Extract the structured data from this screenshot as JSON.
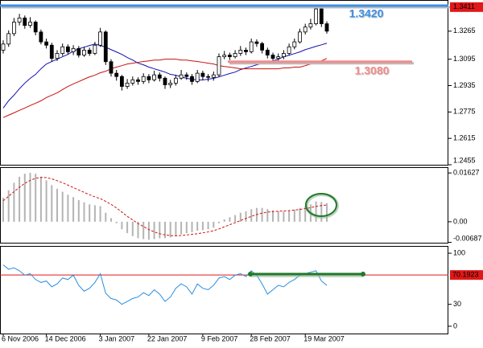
{
  "chart_data": [
    {
      "type": "candlestick",
      "open": [
        1.315,
        1.3187,
        1.325,
        1.332,
        1.3345,
        1.33,
        1.332,
        1.326,
        1.32,
        1.318,
        1.31,
        1.313,
        1.317,
        1.314,
        1.316,
        1.312,
        1.315,
        1.313,
        1.318,
        1.326,
        1.308,
        1.301,
        1.299,
        1.293,
        1.295,
        1.297,
        1.296,
        1.299,
        1.297,
        1.3,
        1.298,
        1.294,
        1.295,
        1.298,
        1.3,
        1.299,
        1.296,
        1.301,
        1.299,
        1.2985,
        1.3,
        1.311,
        1.312,
        1.311,
        1.313,
        1.315,
        1.314,
        1.32,
        1.319,
        1.315,
        1.312,
        1.31,
        1.311,
        1.313,
        1.317,
        1.32,
        1.326,
        1.329,
        1.331,
        1.34,
        1.331
      ],
      "high": [
        1.321,
        1.327,
        1.3345,
        1.337,
        1.336,
        1.335,
        1.333,
        1.3275,
        1.322,
        1.3195,
        1.315,
        1.319,
        1.3185,
        1.318,
        1.3175,
        1.317,
        1.3165,
        1.32,
        1.3285,
        1.327,
        1.3095,
        1.303,
        1.3,
        1.2975,
        1.299,
        1.2985,
        1.301,
        1.3005,
        1.3025,
        1.3015,
        1.299,
        1.297,
        1.3,
        1.303,
        1.3015,
        1.3005,
        1.303,
        1.3025,
        1.3005,
        1.302,
        1.313,
        1.3145,
        1.3135,
        1.315,
        1.3175,
        1.3165,
        1.322,
        1.3215,
        1.32,
        1.3165,
        1.3135,
        1.313,
        1.315,
        1.319,
        1.322,
        1.328,
        1.331,
        1.334,
        1.342,
        1.3411,
        1.3325
      ],
      "low": [
        1.313,
        1.317,
        1.3235,
        1.33,
        1.328,
        1.3285,
        1.324,
        1.3185,
        1.316,
        1.308,
        1.3085,
        1.3115,
        1.3125,
        1.312,
        1.3105,
        1.311,
        1.3115,
        1.312,
        1.317,
        1.306,
        1.299,
        1.2965,
        1.2905,
        1.2915,
        1.2935,
        1.294,
        1.2945,
        1.295,
        1.296,
        1.296,
        1.2915,
        1.292,
        1.2935,
        1.297,
        1.297,
        1.294,
        1.295,
        1.297,
        1.296,
        1.2965,
        1.299,
        1.3095,
        1.309,
        1.31,
        1.3115,
        1.312,
        1.313,
        1.317,
        1.313,
        1.31,
        1.308,
        1.3085,
        1.3095,
        1.312,
        1.3155,
        1.319,
        1.3245,
        1.3275,
        1.33,
        1.329,
        1.325
      ],
      "close": [
        1.3187,
        1.325,
        1.332,
        1.3345,
        1.33,
        1.332,
        1.326,
        1.32,
        1.318,
        1.31,
        1.313,
        1.317,
        1.314,
        1.316,
        1.312,
        1.315,
        1.313,
        1.318,
        1.326,
        1.308,
        1.301,
        1.299,
        1.293,
        1.295,
        1.297,
        1.296,
        1.299,
        1.297,
        1.3,
        1.298,
        1.294,
        1.295,
        1.298,
        1.3,
        1.299,
        1.296,
        1.301,
        1.299,
        1.2985,
        1.3,
        1.311,
        1.312,
        1.311,
        1.313,
        1.315,
        1.314,
        1.32,
        1.319,
        1.315,
        1.312,
        1.31,
        1.311,
        1.313,
        1.317,
        1.32,
        1.326,
        1.329,
        1.331,
        1.34,
        1.331,
        1.3265
      ],
      "overlays": [
        {
          "color": "#1010b0",
          "values": [
            1.2799,
            1.2843,
            1.2877,
            1.2916,
            1.295,
            1.2979,
            1.3003,
            1.3037,
            1.3066,
            1.3081,
            1.3095,
            1.311,
            1.3124,
            1.3144,
            1.3158,
            1.3168,
            1.3178,
            1.3187,
            1.3178,
            1.3168,
            1.3153,
            1.3139,
            1.3124,
            1.3105,
            1.309,
            1.3071,
            1.3061,
            1.3047,
            1.3037,
            1.3027,
            1.3017,
            1.3003,
            1.2998,
            1.2988,
            1.2979,
            1.2974,
            1.2969,
            1.2969,
            1.2974,
            1.2979,
            1.2988,
            1.2998,
            1.3008,
            1.3017,
            1.3032,
            1.3042,
            1.3051,
            1.3061,
            1.3071,
            1.3076,
            1.3085,
            1.3095,
            1.311,
            1.3119,
            1.3129,
            1.3139,
            1.3153,
            1.3163,
            1.3173,
            1.3182,
            1.3192
          ]
        },
        {
          "color": "#c81010",
          "values": [
            1.2741,
            1.2756,
            1.277,
            1.2785,
            1.2799,
            1.2814,
            1.2828,
            1.2843,
            1.2862,
            1.2877,
            1.2891,
            1.2911,
            1.293,
            1.2945,
            1.2959,
            1.2974,
            1.2988,
            1.2998,
            1.3013,
            1.3022,
            1.3037,
            1.3047,
            1.3056,
            1.3066,
            1.3071,
            1.3076,
            1.3081,
            1.3085,
            1.309,
            1.309,
            1.3095,
            1.3095,
            1.3095,
            1.309,
            1.309,
            1.3085,
            1.3081,
            1.3076,
            1.3071,
            1.3066,
            1.3056,
            1.3051,
            1.3047,
            1.3042,
            1.3037,
            1.3037,
            1.3037,
            1.3037,
            1.3037,
            1.3037,
            1.3037,
            1.3037,
            1.3042,
            1.3042,
            1.3047,
            1.3047,
            1.3056,
            1.3066,
            1.3076,
            1.3085,
            1.31
          ]
        }
      ],
      "ylim": [
        1.2455,
        1.3454
      ],
      "yticks": [
        1.3265,
        1.3095,
        1.2935,
        1.2775,
        1.2615,
        1.2455
      ],
      "price_marker": {
        "value": 1.3411,
        "color": "#e01818"
      },
      "annotations": [
        {
          "value": 1.342,
          "label": "1.3420",
          "color": "#3b8fe6"
        },
        {
          "value": 1.308,
          "label": "1.3080",
          "color": "#f28c8c"
        }
      ]
    },
    {
      "type": "macd",
      "histogram": [
        0.008,
        0.0105,
        0.013,
        0.015,
        0.016,
        0.0163,
        0.016,
        0.015,
        0.0138,
        0.0122,
        0.011,
        0.01,
        0.009,
        0.0082,
        0.0072,
        0.0065,
        0.0058,
        0.0055,
        0.0052,
        0.003,
        0.0012,
        -0.0005,
        -0.0025,
        -0.0038,
        -0.0048,
        -0.0055,
        -0.0058,
        -0.006,
        -0.0058,
        -0.0055,
        -0.0055,
        -0.0052,
        -0.0048,
        -0.0042,
        -0.0038,
        -0.0035,
        -0.003,
        -0.0028,
        -0.0025,
        -0.002,
        -0.0005,
        0.0008,
        0.0015,
        0.0022,
        0.003,
        0.0035,
        0.0042,
        0.0046,
        0.0046,
        0.0042,
        0.0038,
        0.0035,
        0.0034,
        0.0036,
        0.004,
        0.0046,
        0.0052,
        0.0058,
        0.0068,
        0.0066,
        0.0062
      ],
      "signal": [
        0.007,
        0.0085,
        0.01,
        0.0115,
        0.0128,
        0.0138,
        0.0145,
        0.0148,
        0.0147,
        0.0143,
        0.0137,
        0.013,
        0.0122,
        0.0114,
        0.0106,
        0.0098,
        0.009,
        0.0083,
        0.0077,
        0.0068,
        0.0058,
        0.0046,
        0.0032,
        0.0018,
        0.0006,
        -0.0006,
        -0.0016,
        -0.0026,
        -0.0034,
        -0.004,
        -0.0044,
        -0.0046,
        -0.0047,
        -0.0046,
        -0.0044,
        -0.0042,
        -0.004,
        -0.0037,
        -0.0034,
        -0.003,
        -0.0024,
        -0.0017,
        -0.001,
        -0.0003,
        0.0004,
        0.0011,
        0.0018,
        0.0024,
        0.0029,
        0.0032,
        0.0034,
        0.0035,
        0.0036,
        0.0037,
        0.0039,
        0.0041,
        0.0044,
        0.0047,
        0.0051,
        0.0054,
        0.0056
      ],
      "histogram_color": "#b4b4b4",
      "signal_color": "#d01010",
      "ylim": [
        -0.007,
        0.0182
      ],
      "yticks": [
        0.01627,
        {
          "value": 0,
          "label": "0.00"
        },
        -0.00687
      ]
    },
    {
      "type": "line",
      "values": [
        84,
        78,
        80,
        76,
        70,
        72,
        64,
        60,
        62,
        54,
        58,
        66,
        64,
        70,
        56,
        48,
        52,
        60,
        72,
        45,
        38,
        36,
        30,
        34,
        38,
        40,
        46,
        42,
        50,
        44,
        34,
        40,
        52,
        58,
        54,
        44,
        58,
        52,
        50,
        56,
        66,
        68,
        64,
        70,
        72,
        68,
        76,
        70,
        58,
        44,
        50,
        56,
        54,
        60,
        64,
        70,
        72,
        74,
        76,
        62,
        56
      ],
      "color": "#2a8ee0",
      "categories": [
        "6 Nov 2006",
        null,
        null,
        null,
        null,
        null,
        null,
        null,
        "14 Dec 2006",
        null,
        null,
        null,
        null,
        null,
        null,
        null,
        null,
        null,
        "3 Jan 2007",
        null,
        null,
        null,
        null,
        null,
        null,
        null,
        null,
        "22 Jan 2007",
        null,
        null,
        null,
        null,
        null,
        null,
        null,
        null,
        null,
        "9 Feb 2007",
        null,
        null,
        null,
        null,
        null,
        null,
        null,
        null,
        "28 Feb 2007",
        null,
        null,
        null,
        null,
        null,
        null,
        null,
        null,
        null,
        "19 Mar 2007",
        null,
        null,
        null,
        null
      ],
      "ylim": [
        -10,
        110
      ],
      "yticks": [
        100,
        30,
        0
      ],
      "level": {
        "value": 70.1923,
        "color": "#e01818"
      }
    }
  ]
}
